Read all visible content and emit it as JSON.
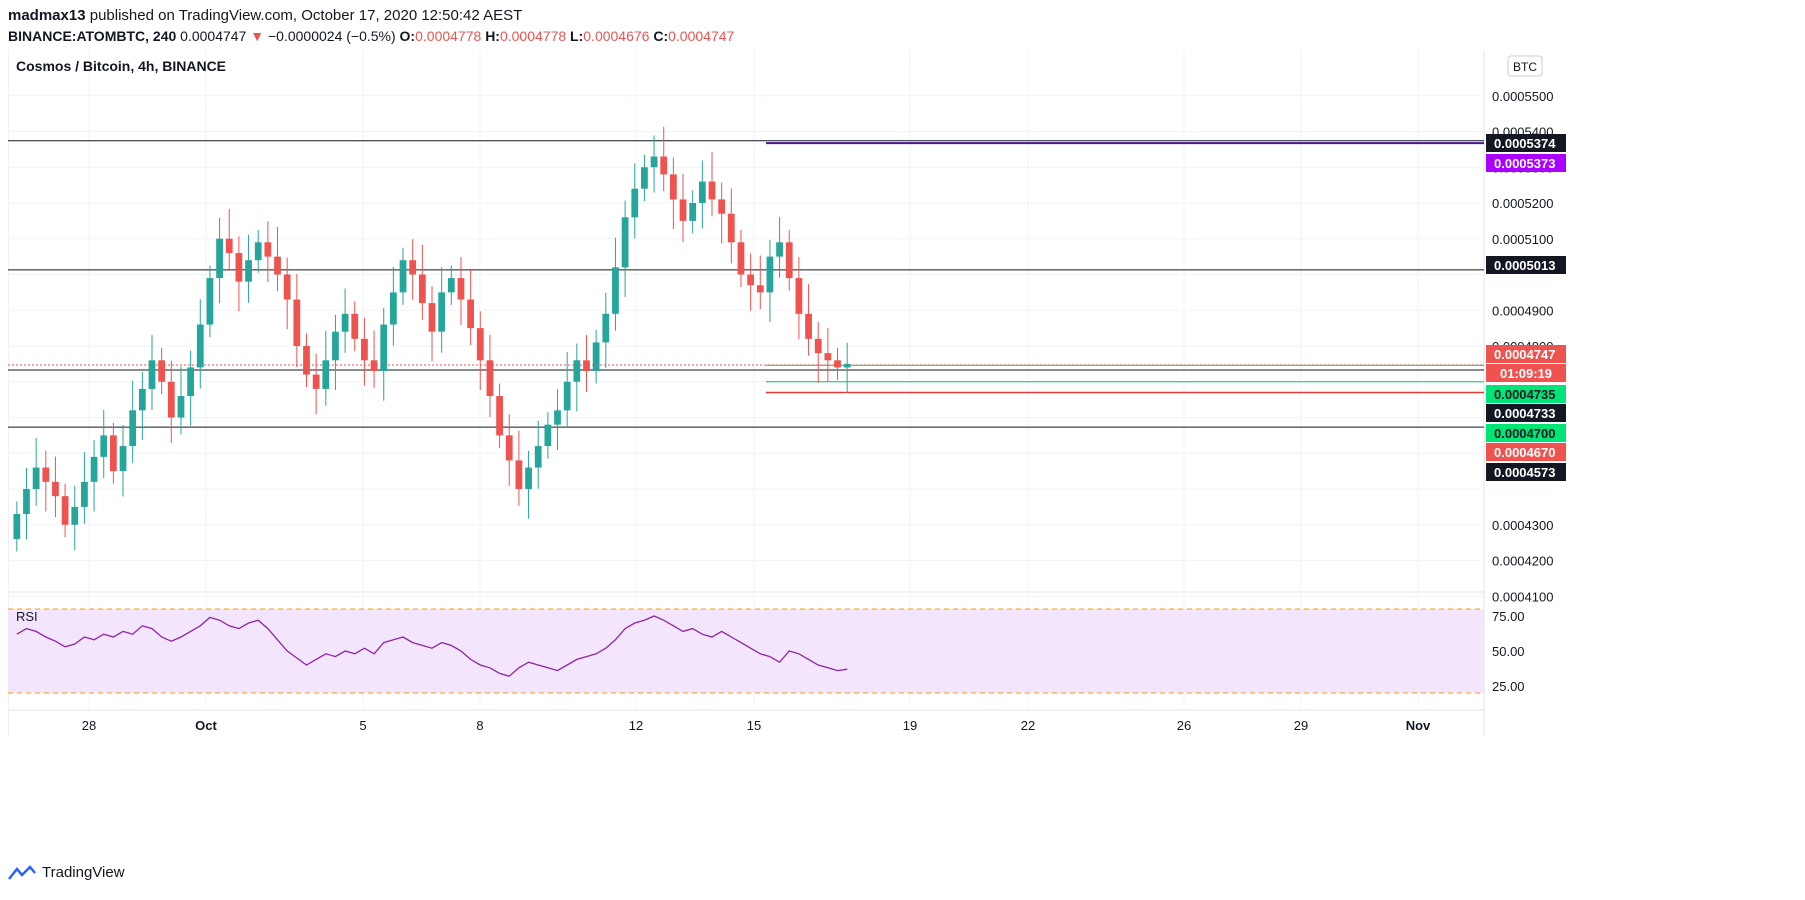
{
  "header": {
    "author": "madmax13",
    "published_text": " published on TradingView.com, October 17, 2020 12:50:42 AEST",
    "symbol": "BINANCE:ATOMBTC, 240",
    "last": "0.0004747",
    "down_arrow": "▼",
    "change": "−0.0000024 (−0.5%)",
    "o_label": "O:",
    "o_value": "0.0004778",
    "h_label": "H:",
    "h_value": "0.0004778",
    "l_label": "L:",
    "l_value": "0.0004676",
    "c_label": "C:",
    "c_value": "0.0004747"
  },
  "chart": {
    "pane_title": "Cosmos / Bitcoin, 4h, BINANCE",
    "currency_badge": "BTC",
    "rsi_label": "RSI",
    "colors": {
      "up": "#26a69a",
      "down": "#ef5350",
      "rsi_line": "#8e24aa",
      "rsi_band": "#f3e5fc",
      "rsi_bounds": "#ff9800"
    }
  },
  "chart_data": {
    "type": "candlestick",
    "price_axis": {
      "ticks": [
        "0.0005500",
        "0.0005400",
        "0.0005300",
        "0.0005200",
        "0.0005100",
        "0.0004900",
        "0.0004800",
        "0.0004300",
        "0.0004200",
        "0.0004100"
      ],
      "range": [
        0.0004,
        0.00056
      ]
    },
    "x_ticks": [
      "28",
      "Oct",
      "5",
      "8",
      "12",
      "15",
      "19",
      "22",
      "26",
      "29",
      "Nov"
    ],
    "price_labels": [
      {
        "value": "0.0005374",
        "kind": "black"
      },
      {
        "value": "0.0005373",
        "kind": "purple"
      },
      {
        "value": "0.0005013",
        "kind": "black"
      },
      {
        "value": "0.0004747",
        "kind": "red"
      },
      {
        "value": "01:09:19",
        "kind": "red-timer"
      },
      {
        "value": "0.0004735",
        "kind": "green"
      },
      {
        "value": "0.0004733",
        "kind": "black"
      },
      {
        "value": "0.0004700",
        "kind": "green"
      },
      {
        "value": "0.0004670",
        "kind": "red"
      },
      {
        "value": "0.0004573",
        "kind": "black"
      }
    ],
    "closes": [
      0.000433,
      0.00044,
      0.000446,
      0.000442,
      0.000438,
      0.00043,
      0.000435,
      0.000442,
      0.000449,
      0.000455,
      0.000445,
      0.000452,
      0.000462,
      0.000468,
      0.000476,
      0.00047,
      0.00046,
      0.000466,
      0.000474,
      0.000486,
      0.000499,
      0.00051,
      0.000506,
      0.000498,
      0.000504,
      0.000509,
      0.000505,
      0.0005,
      0.000493,
      0.00048,
      0.000472,
      0.000468,
      0.000476,
      0.000484,
      0.000489,
      0.000482,
      0.000476,
      0.000473,
      0.000486,
      0.000495,
      0.000504,
      0.0005,
      0.000492,
      0.000484,
      0.000495,
      0.000499,
      0.000493,
      0.000485,
      0.000476,
      0.000466,
      0.000455,
      0.000448,
      0.00044,
      0.000446,
      0.000452,
      0.000458,
      0.000462,
      0.00047,
      0.000476,
      0.000473,
      0.000481,
      0.000489,
      0.000502,
      0.000516,
      0.000524,
      0.00053,
      0.000533,
      0.000528,
      0.000521,
      0.000515,
      0.00052,
      0.000526,
      0.000521,
      0.000517,
      0.000509,
      0.0005,
      0.000497,
      0.000495,
      0.000505,
      0.000509,
      0.000499,
      0.000489,
      0.000482,
      0.000478,
      0.000476,
      0.000474,
      0.000475
    ],
    "rsi": {
      "ticks": [
        "75.00",
        "50.00",
        "25.00"
      ],
      "range": [
        15,
        85
      ],
      "upper": 80,
      "lower": 20,
      "values": [
        62,
        66,
        64,
        60,
        57,
        53,
        55,
        60,
        58,
        62,
        60,
        64,
        62,
        68,
        66,
        60,
        57,
        60,
        64,
        68,
        74,
        72,
        68,
        66,
        70,
        72,
        66,
        58,
        50,
        45,
        40,
        44,
        48,
        46,
        50,
        48,
        52,
        48,
        56,
        58,
        60,
        56,
        54,
        52,
        56,
        54,
        50,
        44,
        40,
        38,
        34,
        32,
        38,
        42,
        40,
        38,
        36,
        40,
        44,
        46,
        48,
        52,
        58,
        66,
        70,
        72,
        75,
        72,
        68,
        64,
        66,
        62,
        60,
        64,
        60,
        56,
        52,
        48,
        46,
        42,
        50,
        48,
        44,
        40,
        38,
        36,
        37
      ],
      "values_note": ""
    },
    "grid": true
  },
  "footer": {
    "brand": "TradingView"
  }
}
